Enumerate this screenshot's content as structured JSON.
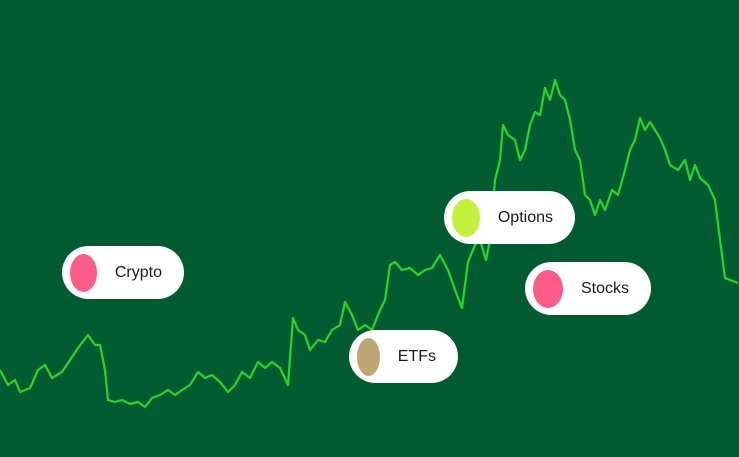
{
  "pills": [
    {
      "label": "Crypto",
      "color": "#fd5b8a"
    },
    {
      "label": "Options",
      "color": "#c4f23c"
    },
    {
      "label": "Stocks",
      "color": "#fd5b8a"
    },
    {
      "label": "ETFs",
      "color": "#bfa774"
    }
  ]
}
